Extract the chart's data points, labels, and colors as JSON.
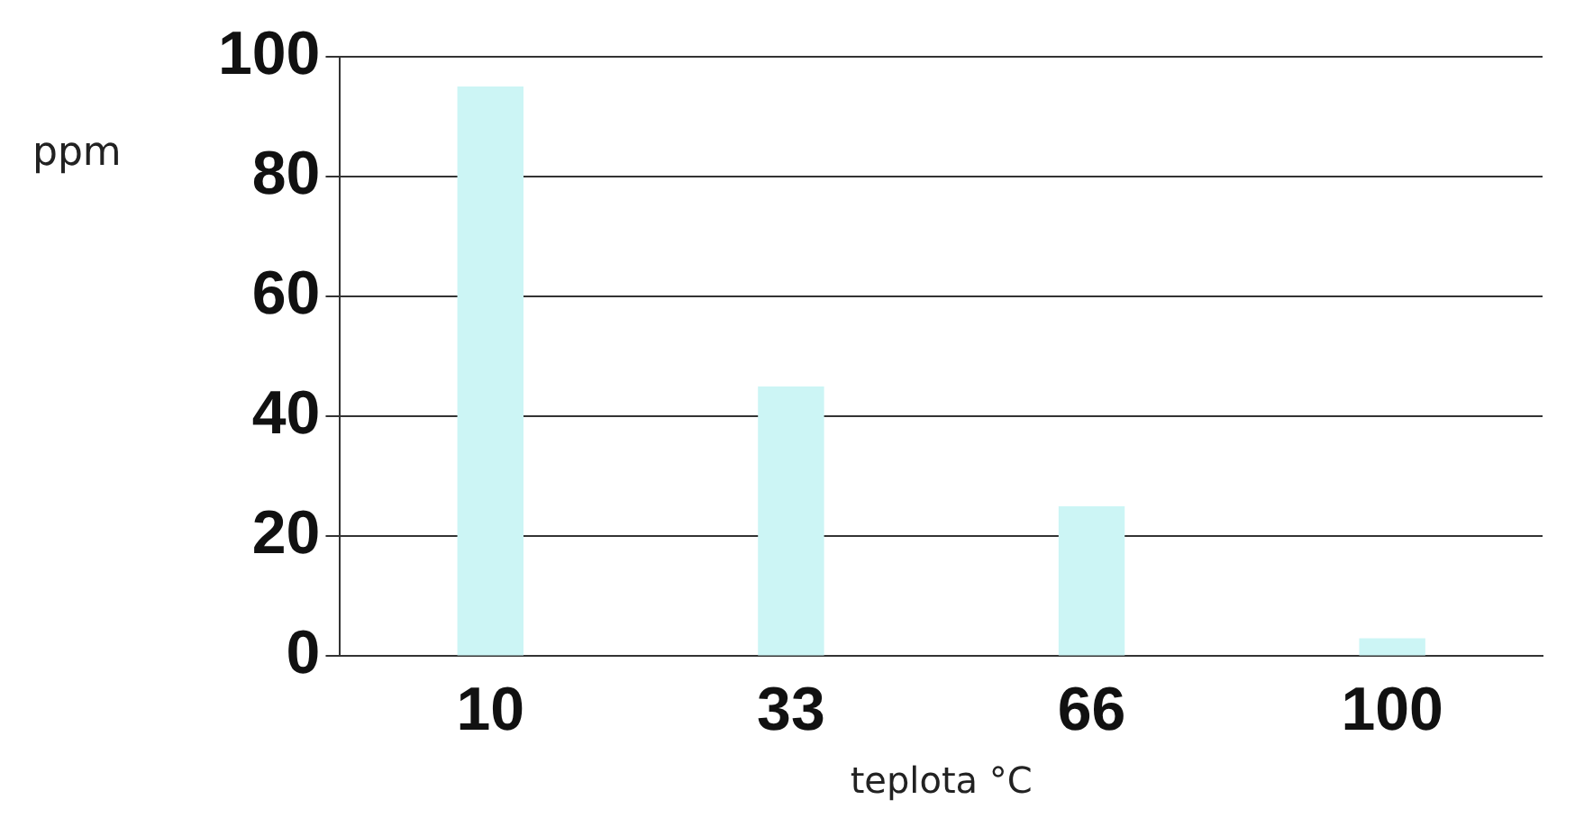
{
  "chart_data": {
    "type": "bar",
    "xlabel": "teplota °C",
    "ylabel": "ppm",
    "categories": [
      "10",
      "33",
      "66",
      "100"
    ],
    "values": [
      95,
      45,
      25,
      3
    ],
    "color": "#ccf5f5",
    "ylim": [
      0,
      100
    ],
    "yticks": [
      0,
      20,
      40,
      60,
      80,
      100
    ],
    "grid": "y"
  }
}
